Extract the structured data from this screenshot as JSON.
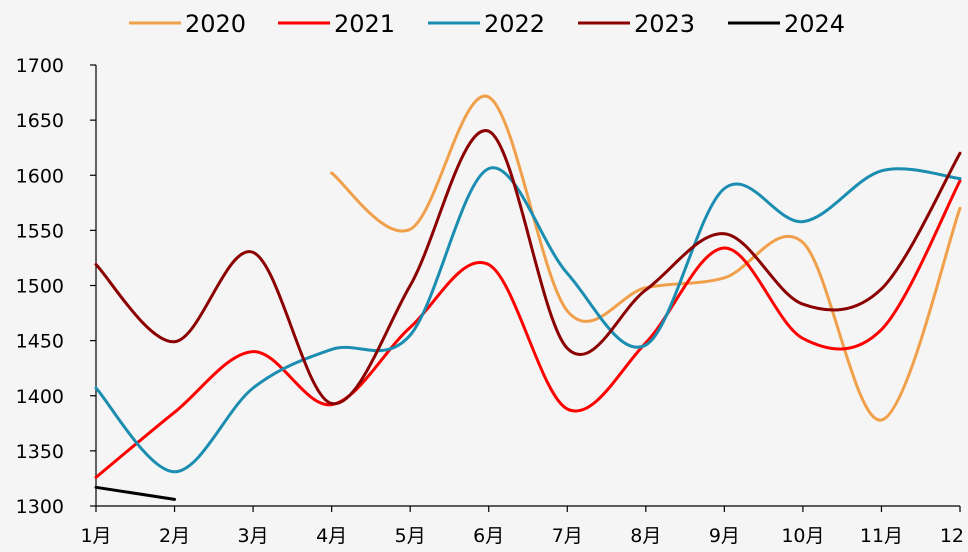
{
  "chart_data": {
    "type": "line",
    "title": "",
    "xlabel": "",
    "ylabel": "",
    "categories": [
      "1月",
      "2月",
      "3月",
      "4月",
      "5月",
      "6月",
      "7月",
      "8月",
      "9月",
      "10月",
      "11月",
      "12"
    ],
    "ylim": [
      1300,
      1700
    ],
    "yticks": [
      1300,
      1350,
      1400,
      1450,
      1500,
      1550,
      1600,
      1650,
      1700
    ],
    "grid": false,
    "legend_position": "top",
    "smooth": true,
    "series": [
      {
        "name": "2020",
        "color": "#f0a04b",
        "values": [
          null,
          null,
          null,
          1602,
          1551,
          1671,
          1477,
          1498,
          1507,
          1539,
          1378,
          1570
        ]
      },
      {
        "name": "2021",
        "color": "#ff0000",
        "values": [
          1326,
          1385,
          1440,
          1392,
          1462,
          1519,
          1388,
          1448,
          1534,
          1452,
          1460,
          1595
        ]
      },
      {
        "name": "2022",
        "color": "#1a8db0",
        "values": [
          1407,
          1331,
          1407,
          1442,
          1455,
          1606,
          1511,
          1446,
          1588,
          1558,
          1604,
          1597
        ]
      },
      {
        "name": "2023",
        "color": "#8b0000",
        "values": [
          1519,
          1449,
          1530,
          1393,
          1500,
          1640,
          1443,
          1496,
          1547,
          1483,
          1497,
          1620
        ]
      },
      {
        "name": "2024",
        "color": "#000000",
        "values": [
          1317,
          1306,
          null,
          null,
          null,
          null,
          null,
          null,
          null,
          null,
          null,
          null
        ]
      }
    ]
  }
}
